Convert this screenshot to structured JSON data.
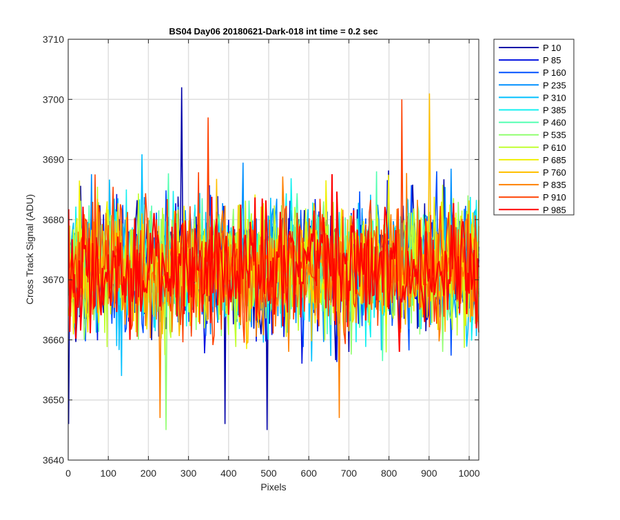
{
  "chart_data": {
    "type": "line",
    "title": "BS04 Day06 20180621-Dark-018 int time = 0.2 sec",
    "xlabel": "Pixels",
    "ylabel": "Cross Track Signal (ADU)",
    "xlim": [
      0,
      1024
    ],
    "ylim": [
      3640,
      3710
    ],
    "xticks": [
      0,
      100,
      200,
      300,
      400,
      500,
      600,
      700,
      800,
      900,
      1000
    ],
    "yticks": [
      3640,
      3650,
      3660,
      3670,
      3680,
      3690,
      3700,
      3710
    ],
    "grid": true,
    "legend_position": "outside-top-right",
    "approximate_mean": 3672,
    "series": [
      {
        "name": "P 10",
        "color": "#0000a8"
      },
      {
        "name": "P 85",
        "color": "#0010e0"
      },
      {
        "name": "P 160",
        "color": "#0050ff"
      },
      {
        "name": "P 235",
        "color": "#0090ff"
      },
      {
        "name": "P 310",
        "color": "#00c0ff"
      },
      {
        "name": "P 385",
        "color": "#10f0f0"
      },
      {
        "name": "P 460",
        "color": "#50ffb0"
      },
      {
        "name": "P 535",
        "color": "#90ff70"
      },
      {
        "name": "P 610",
        "color": "#c0ff30"
      },
      {
        "name": "P 685",
        "color": "#f0f000"
      },
      {
        "name": "P 760",
        "color": "#ffc000"
      },
      {
        "name": "P 835",
        "color": "#ff8000"
      },
      {
        "name": "P 910",
        "color": "#ff4000"
      },
      {
        "name": "P 985",
        "color": "#ff0000"
      }
    ],
    "notable_points": [
      {
        "series": "P 10",
        "x": 283,
        "y": 3702
      },
      {
        "series": "P 760",
        "x": 900,
        "y": 3701
      },
      {
        "series": "P 910",
        "x": 833,
        "y": 3700
      },
      {
        "series": "P 910",
        "x": 348,
        "y": 3697
      },
      {
        "series": "P 10",
        "x": 496,
        "y": 3645
      },
      {
        "series": "P 535",
        "x": 243,
        "y": 3645
      },
      {
        "series": "P 10",
        "x": 2,
        "y": 3646
      },
      {
        "series": "P 10",
        "x": 392,
        "y": 3646
      },
      {
        "series": "P 835",
        "x": 228,
        "y": 3647
      },
      {
        "series": "P 835",
        "x": 675,
        "y": 3647
      }
    ]
  }
}
